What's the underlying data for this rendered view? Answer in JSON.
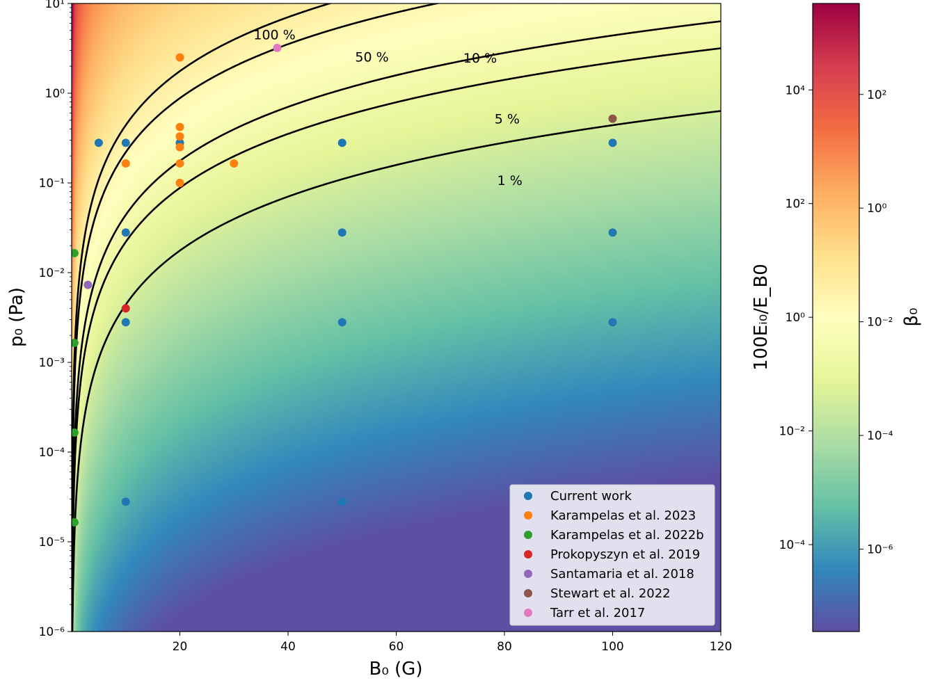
{
  "chart_data": {
    "type": "scatter",
    "xlabel": "B₀ (G)",
    "ylabel": "p₀ (Pa)",
    "xscale": "linear",
    "yscale": "log",
    "xlim": [
      0,
      120
    ],
    "ylim": [
      1e-06,
      10
    ],
    "x_ticks": [
      20,
      40,
      60,
      80,
      100,
      120
    ],
    "y_ticks": [
      {
        "exp": 1,
        "label": "10¹"
      },
      {
        "exp": 0,
        "label": "10⁰"
      },
      {
        "exp": -1,
        "label": "10⁻¹"
      },
      {
        "exp": -2,
        "label": "10⁻²"
      },
      {
        "exp": -3,
        "label": "10⁻³"
      },
      {
        "exp": -4,
        "label": "10⁻⁴"
      },
      {
        "exp": -5,
        "label": "10⁻⁵"
      },
      {
        "exp": -6,
        "label": "10⁻⁶"
      }
    ],
    "background": "beta_0 field, Spectral_r colormap",
    "contours": [
      {
        "label": "100 %",
        "ratio": 100,
        "label_x": 37.5,
        "label_y": 4.0
      },
      {
        "label": "50 %",
        "ratio": 50,
        "label_x": 55.5,
        "label_y": 2.25
      },
      {
        "label": "10 %",
        "ratio": 10,
        "label_x": 75.5,
        "label_y": 2.2
      },
      {
        "label": "5 %",
        "ratio": 5,
        "label_x": 80.5,
        "label_y": 0.46
      },
      {
        "label": "1 %",
        "ratio": 1,
        "label_x": 81,
        "label_y": 0.095
      }
    ],
    "series": [
      {
        "name": "Current work",
        "color": "#1f77b4",
        "points": [
          [
            5,
            0.28
          ],
          [
            10,
            0.28
          ],
          [
            20,
            0.28
          ],
          [
            50,
            0.28
          ],
          [
            100,
            0.28
          ],
          [
            10,
            0.028
          ],
          [
            50,
            0.028
          ],
          [
            100,
            0.028
          ],
          [
            10,
            0.0028
          ],
          [
            50,
            0.0028
          ],
          [
            100,
            0.0028
          ],
          [
            10,
            2.8e-05
          ],
          [
            50,
            2.8e-05
          ]
        ]
      },
      {
        "name": "Karampelas et al. 2023",
        "color": "#ff7f0e",
        "points": [
          [
            20,
            2.5
          ],
          [
            20,
            0.42
          ],
          [
            20,
            0.33
          ],
          [
            20,
            0.25
          ],
          [
            10,
            0.165
          ],
          [
            20,
            0.165
          ],
          [
            30,
            0.165
          ],
          [
            20,
            0.1
          ]
        ]
      },
      {
        "name": "Karampelas et al. 2022b",
        "color": "#2ca02c",
        "points": [
          [
            0.5,
            0.0165
          ],
          [
            0.5,
            0.00165
          ],
          [
            0.5,
            0.000165
          ],
          [
            0.5,
            1.65e-05
          ]
        ]
      },
      {
        "name": "Prokopyszyn et al. 2019",
        "color": "#d62728",
        "points": [
          [
            10,
            0.004
          ]
        ]
      },
      {
        "name": "Santamaria et al. 2018",
        "color": "#9467bd",
        "points": [
          [
            3,
            0.0073
          ]
        ]
      },
      {
        "name": "Stewart et al. 2022",
        "color": "#8c564b",
        "points": [
          [
            100,
            0.52
          ]
        ]
      },
      {
        "name": "Tarr et al. 2017",
        "color": "#e377c2",
        "points": [
          [
            38,
            3.2
          ]
        ]
      }
    ],
    "legend_position": "lower right",
    "colorbar": {
      "colormap": "Spectral_r",
      "label_left": "100Eᵢ₀/E_B0",
      "label_right": "β₀",
      "left_ticks": [
        {
          "exp": 4,
          "label": "10⁴"
        },
        {
          "exp": 2,
          "label": "10²"
        },
        {
          "exp": 0,
          "label": "10⁰"
        },
        {
          "exp": -2,
          "label": "10⁻²"
        },
        {
          "exp": -4,
          "label": "10⁻⁴"
        }
      ],
      "right_ticks": [
        {
          "exp": 2,
          "label": "10²"
        },
        {
          "exp": 0,
          "label": "10⁰"
        },
        {
          "exp": -2,
          "label": "10⁻²"
        },
        {
          "exp": -4,
          "label": "10⁻⁴"
        },
        {
          "exp": -6,
          "label": "10⁻⁶"
        }
      ]
    }
  }
}
